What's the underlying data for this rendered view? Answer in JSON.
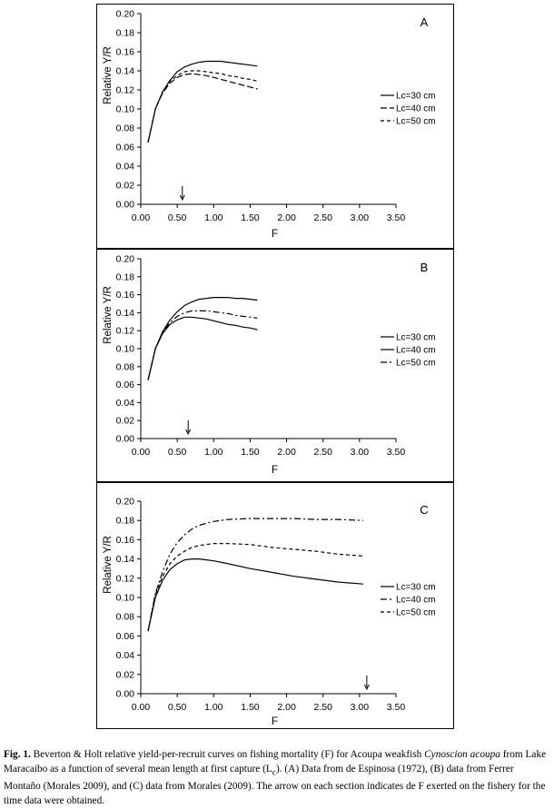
{
  "chart_data": [
    {
      "type": "line",
      "panel_label": "A",
      "xlabel": "F",
      "ylabel": "Relative Y/R",
      "xlim": [
        0,
        3.5
      ],
      "ylim": [
        0,
        0.2
      ],
      "xticks": [
        "0.00",
        "0.50",
        "1.00",
        "1.50",
        "2.00",
        "2.50",
        "3.00",
        "3.50"
      ],
      "yticks": [
        "0.00",
        "0.02",
        "0.04",
        "0.06",
        "0.08",
        "0.10",
        "0.12",
        "0.14",
        "0.16",
        "0.18",
        "0.20"
      ],
      "legend_position": "right",
      "arrow_f": 0.57,
      "series": [
        {
          "name": "Lc=30 cm",
          "dash": "solid",
          "x": [
            0.1,
            0.2,
            0.3,
            0.4,
            0.5,
            0.6,
            0.7,
            0.8,
            0.9,
            1.0,
            1.1,
            1.2,
            1.3,
            1.4,
            1.5,
            1.6
          ],
          "y": [
            0.065,
            0.1,
            0.118,
            0.13,
            0.139,
            0.144,
            0.147,
            0.149,
            0.15,
            0.15,
            0.15,
            0.149,
            0.148,
            0.147,
            0.146,
            0.145
          ]
        },
        {
          "name": "Lc=40 cm",
          "dash": "longdash",
          "x": [
            0.1,
            0.2,
            0.3,
            0.4,
            0.5,
            0.6,
            0.7,
            0.8,
            0.9,
            1.0,
            1.1,
            1.2,
            1.3,
            1.4,
            1.5,
            1.6
          ],
          "y": [
            0.065,
            0.1,
            0.117,
            0.127,
            0.133,
            0.136,
            0.137,
            0.136,
            0.135,
            0.133,
            0.131,
            0.129,
            0.127,
            0.125,
            0.123,
            0.121
          ]
        },
        {
          "name": "Lc=50 cm",
          "dash": "shortdash",
          "x": [
            0.1,
            0.2,
            0.3,
            0.4,
            0.5,
            0.6,
            0.7,
            0.8,
            0.9,
            1.0,
            1.1,
            1.2,
            1.3,
            1.4,
            1.5,
            1.6
          ],
          "y": [
            0.065,
            0.1,
            0.118,
            0.129,
            0.135,
            0.139,
            0.14,
            0.14,
            0.139,
            0.138,
            0.137,
            0.135,
            0.134,
            0.132,
            0.131,
            0.129
          ]
        }
      ]
    },
    {
      "type": "line",
      "panel_label": "B",
      "xlabel": "F",
      "ylabel": "Relative Y/R",
      "xlim": [
        0,
        3.5
      ],
      "ylim": [
        0,
        0.2
      ],
      "xticks": [
        "0.00",
        "0.50",
        "1.00",
        "1.50",
        "2.00",
        "2.50",
        "3.00",
        "3.50"
      ],
      "yticks": [
        "0.00",
        "0.02",
        "0.04",
        "0.06",
        "0.08",
        "0.10",
        "0.12",
        "0.14",
        "0.16",
        "0.18",
        "0.20"
      ],
      "legend_position": "right",
      "arrow_f": 0.65,
      "series": [
        {
          "name": "Lc=30 cm",
          "dash": "solid",
          "x": [
            0.1,
            0.2,
            0.3,
            0.4,
            0.5,
            0.6,
            0.7,
            0.8,
            0.9,
            1.0,
            1.1,
            1.2,
            1.3,
            1.4,
            1.5,
            1.6
          ],
          "y": [
            0.065,
            0.1,
            0.119,
            0.132,
            0.141,
            0.148,
            0.152,
            0.155,
            0.156,
            0.157,
            0.157,
            0.157,
            0.156,
            0.156,
            0.155,
            0.154
          ]
        },
        {
          "name": "Lc=40 cm",
          "dash": "solid",
          "x": [
            0.1,
            0.2,
            0.3,
            0.4,
            0.5,
            0.6,
            0.7,
            0.8,
            0.9,
            1.0,
            1.1,
            1.2,
            1.3,
            1.4,
            1.5,
            1.6
          ],
          "y": [
            0.065,
            0.1,
            0.117,
            0.127,
            0.132,
            0.135,
            0.135,
            0.134,
            0.133,
            0.131,
            0.129,
            0.127,
            0.126,
            0.124,
            0.123,
            0.121
          ]
        },
        {
          "name": "Lc=50 cm",
          "dash": "dashdot",
          "x": [
            0.1,
            0.2,
            0.3,
            0.4,
            0.5,
            0.6,
            0.7,
            0.8,
            0.9,
            1.0,
            1.1,
            1.2,
            1.3,
            1.4,
            1.5,
            1.6
          ],
          "y": [
            0.065,
            0.1,
            0.118,
            0.129,
            0.136,
            0.14,
            0.142,
            0.142,
            0.142,
            0.141,
            0.14,
            0.139,
            0.137,
            0.136,
            0.135,
            0.134
          ]
        }
      ]
    },
    {
      "type": "line",
      "panel_label": "C",
      "xlabel": "F",
      "ylabel": "Relative Y/R",
      "xlim": [
        0,
        3.5
      ],
      "ylim": [
        0,
        0.2
      ],
      "xticks": [
        "0.00",
        "0.50",
        "1.00",
        "1.50",
        "2.00",
        "2.50",
        "3.00",
        "3.50"
      ],
      "yticks": [
        "0.00",
        "0.02",
        "0.04",
        "0.06",
        "0.08",
        "0.10",
        "0.12",
        "0.14",
        "0.16",
        "0.18",
        "0.20"
      ],
      "legend_position": "right",
      "arrow_f": 3.1,
      "series": [
        {
          "name": "Lc=30 cm",
          "dash": "solid",
          "x": [
            0.1,
            0.2,
            0.3,
            0.4,
            0.5,
            0.6,
            0.7,
            0.8,
            1.0,
            1.2,
            1.5,
            1.8,
            2.1,
            2.4,
            2.7,
            3.05
          ],
          "y": [
            0.065,
            0.1,
            0.118,
            0.129,
            0.135,
            0.139,
            0.14,
            0.14,
            0.138,
            0.135,
            0.13,
            0.126,
            0.122,
            0.119,
            0.116,
            0.114
          ]
        },
        {
          "name": "Lc=40 cm",
          "dash": "dashdot",
          "x": [
            0.1,
            0.2,
            0.3,
            0.4,
            0.5,
            0.6,
            0.7,
            0.8,
            1.0,
            1.2,
            1.5,
            1.8,
            2.1,
            2.4,
            2.7,
            3.05
          ],
          "y": [
            0.065,
            0.104,
            0.127,
            0.145,
            0.157,
            0.165,
            0.171,
            0.175,
            0.179,
            0.181,
            0.182,
            0.182,
            0.182,
            0.181,
            0.181,
            0.18
          ]
        },
        {
          "name": "Lc=50 cm",
          "dash": "shortdash",
          "x": [
            0.1,
            0.2,
            0.3,
            0.4,
            0.5,
            0.6,
            0.7,
            0.8,
            1.0,
            1.2,
            1.5,
            1.8,
            2.1,
            2.4,
            2.7,
            3.05
          ],
          "y": [
            0.065,
            0.103,
            0.122,
            0.135,
            0.143,
            0.148,
            0.152,
            0.154,
            0.156,
            0.156,
            0.155,
            0.152,
            0.15,
            0.148,
            0.145,
            0.143
          ]
        }
      ]
    }
  ],
  "caption": {
    "fig_label": "Fig. 1.",
    "part1": " Beverton & Holt relative yield-per-recruit curves on fishing mortality (F) for Acoupa weakfish ",
    "species": "Cynoscion acoupa",
    "part2": " from Lake Maracaibo as a function of several mean length at first capture (L",
    "subscript": "c",
    "part3": "). (A) Data from de Espinosa (1972), (B) data from Ferrer Montaño (Morales 2009), and (C) data from Morales (2009). The arrow on each section indicates de F exerted on the fishery for the time data were obtained."
  }
}
